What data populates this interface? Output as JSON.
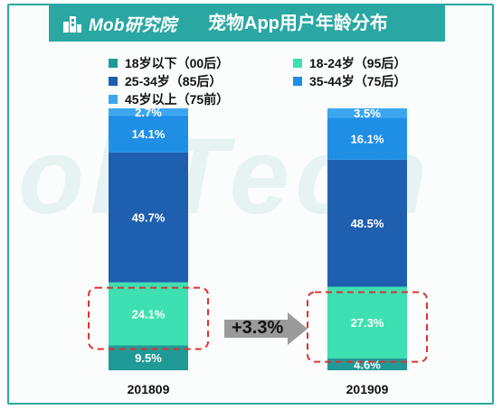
{
  "header": {
    "brand": "Mob研究院",
    "title": "宠物App用户年龄分布"
  },
  "watermark": "obTech",
  "legend": [
    {
      "name": "18岁以下（00后）",
      "color": "#1f9a96"
    },
    {
      "name": "18-24岁（95后）",
      "color": "#3de0b0"
    },
    {
      "name": "25-34岁（85后）",
      "color": "#1f5fb0"
    },
    {
      "name": "35-44岁（75后）",
      "color": "#1f8fe6"
    },
    {
      "name": "45岁以上（75前）",
      "color": "#3ca6f0"
    }
  ],
  "chart_data": {
    "type": "bar",
    "stacked": true,
    "categories": [
      "201809",
      "201909"
    ],
    "series": [
      {
        "name": "18岁以下（00后）",
        "values": [
          9.5,
          4.6
        ]
      },
      {
        "name": "18-24岁（95后）",
        "values": [
          24.1,
          27.3
        ]
      },
      {
        "name": "25-34岁（85后）",
        "values": [
          49.7,
          48.5
        ]
      },
      {
        "name": "35-44岁（75后）",
        "values": [
          14.1,
          16.1
        ]
      },
      {
        "name": "45岁以上（75前）",
        "values": [
          2.7,
          3.5
        ]
      }
    ],
    "data_labels": [
      [
        "9.5%",
        "24.1%",
        "49.7%",
        "14.1%",
        "2.7%"
      ],
      [
        "4.6%",
        "27.3%",
        "48.5%",
        "16.1%",
        "3.5%"
      ]
    ],
    "highlight_series": "18-24岁（95后）",
    "annotation": "+3.3%",
    "ylim": [
      0,
      100
    ]
  }
}
